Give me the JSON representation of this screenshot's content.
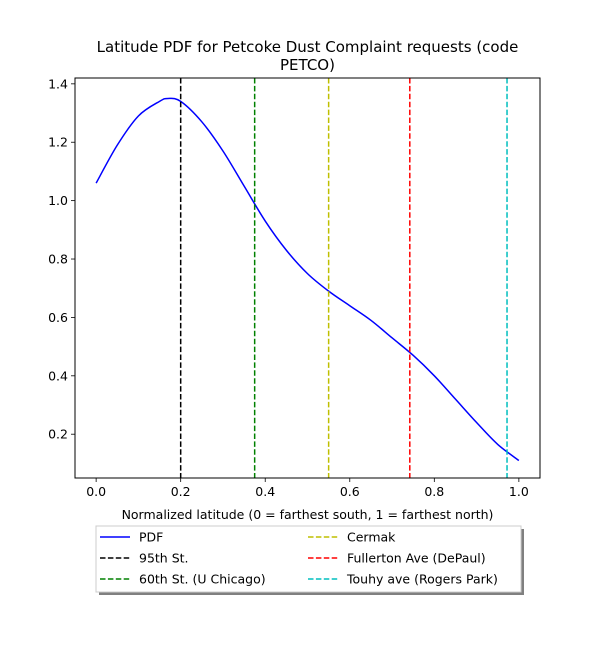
{
  "chart_data": {
    "type": "line",
    "title_lines": [
      "Latitude PDF for Petcoke Dust Complaint  requests (code",
      "PETCO)"
    ],
    "xlabel": "Normalized latitude (0 = farthest south, 1 = farthest north)",
    "ylabel": "",
    "xlim": [
      -0.05,
      1.05
    ],
    "ylim": [
      0.05,
      1.42
    ],
    "xticks": [
      0.0,
      0.2,
      0.4,
      0.6,
      0.8,
      1.0
    ],
    "xtick_labels": [
      "0.0",
      "0.2",
      "0.4",
      "0.6",
      "0.8",
      "1.0"
    ],
    "yticks": [
      0.2,
      0.4,
      0.6,
      0.8,
      1.0,
      1.2,
      1.4
    ],
    "ytick_labels": [
      "0.2",
      "0.4",
      "0.6",
      "0.8",
      "1.0",
      "1.2",
      "1.4"
    ],
    "grid": false,
    "legend_position": "below the plot, two columns, with shadow",
    "series": [
      {
        "name": "PDF",
        "color": "#0000ff",
        "style": "solid",
        "x": [
          0.0,
          0.05,
          0.1,
          0.15,
          0.17,
          0.2,
          0.25,
          0.3,
          0.35,
          0.4,
          0.45,
          0.5,
          0.55,
          0.6,
          0.65,
          0.7,
          0.75,
          0.8,
          0.85,
          0.9,
          0.95,
          1.0
        ],
        "y": [
          1.06,
          1.19,
          1.29,
          1.34,
          1.35,
          1.34,
          1.27,
          1.17,
          1.05,
          0.93,
          0.83,
          0.75,
          0.69,
          0.64,
          0.59,
          0.53,
          0.47,
          0.4,
          0.32,
          0.24,
          0.165,
          0.11
        ]
      }
    ],
    "vlines": [
      {
        "name": "95th St.",
        "x": 0.2,
        "color": "#000000"
      },
      {
        "name": "60th St. (U Chicago)",
        "x": 0.375,
        "color": "#008000"
      },
      {
        "name": "Cermak",
        "x": 0.55,
        "color": "#bfbf00"
      },
      {
        "name": "Fullerton Ave (DePaul)",
        "x": 0.742,
        "color": "#ff0000"
      },
      {
        "name": "Touhy ave (Rogers Park)",
        "x": 0.972,
        "color": "#00bfbf"
      }
    ]
  }
}
